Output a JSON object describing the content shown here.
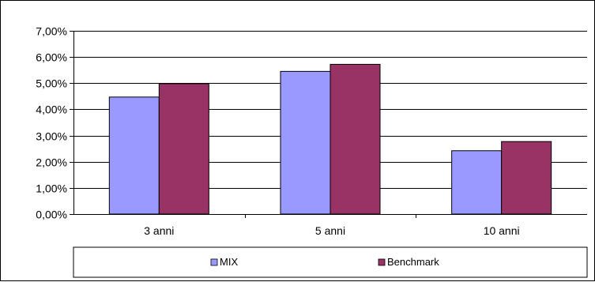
{
  "chart_data": {
    "type": "bar",
    "categories": [
      "3 anni",
      "5 anni",
      "10 anni"
    ],
    "series": [
      {
        "name": "MIX",
        "values": [
          4.47,
          5.45,
          2.42
        ],
        "color": "#9999ff"
      },
      {
        "name": "Benchmark",
        "values": [
          4.98,
          5.72,
          2.77
        ],
        "color": "#993366"
      }
    ],
    "ylim": [
      0,
      7
    ],
    "yticks": [
      0,
      1,
      2,
      3,
      4,
      5,
      6,
      7
    ],
    "ytick_labels": [
      "0,00%",
      "1,00%",
      "2,00%",
      "3,00%",
      "4,00%",
      "5,00%",
      "6,00%",
      "7,00%"
    ],
    "gridlines": true,
    "legend_position": "bottom",
    "title": "",
    "xlabel": "",
    "ylabel": ""
  }
}
